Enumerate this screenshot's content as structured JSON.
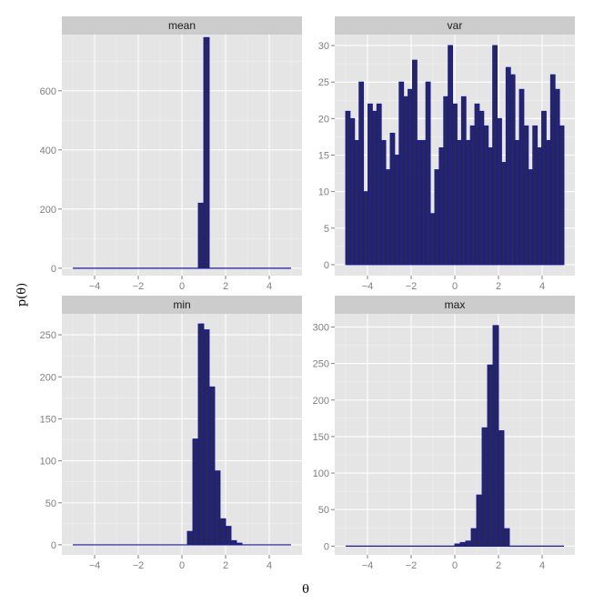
{
  "chart_data": {
    "type": "bar",
    "layout": "facet_wrap_2x2",
    "xlabel": "θ",
    "ylabel": "p(θ)",
    "grid": true,
    "legend": "none",
    "colors": {
      "bar_fill": "#262660",
      "bar_outline": "#1a1aa0",
      "panel_bg": "#e5e5e5",
      "strip_bg": "#cccccc",
      "grid": "#ffffff"
    },
    "bin_width": 0.25,
    "x_range": [
      -5,
      5
    ],
    "xlim": [
      -5.5,
      5.5
    ],
    "x_ticks": [
      -4,
      -2,
      0,
      2,
      4
    ],
    "panels": [
      {
        "title": "mean",
        "ylim": [
          -25,
          790
        ],
        "y_ticks": [
          0,
          200,
          400,
          600
        ],
        "bins": [
          {
            "x": 0.875,
            "y": 220
          },
          {
            "x": 1.125,
            "y": 780
          }
        ]
      },
      {
        "title": "var",
        "ylim": [
          -1.5,
          31.5
        ],
        "y_ticks": [
          0,
          5,
          10,
          15,
          20,
          25,
          30
        ],
        "values": [
          21,
          20,
          17,
          25,
          10,
          22,
          21,
          22,
          17,
          13,
          18,
          15,
          25,
          23,
          24,
          28,
          17,
          17,
          25,
          7,
          13,
          16,
          23,
          30,
          22,
          17,
          23,
          17,
          19,
          22,
          21,
          19,
          16,
          30,
          20,
          14,
          27,
          26,
          17,
          24,
          19,
          13,
          19,
          16,
          21,
          17,
          26,
          24,
          19
        ]
      },
      {
        "title": "min",
        "ylim": [
          -12,
          275
        ],
        "y_ticks": [
          0,
          50,
          100,
          150,
          200,
          250
        ],
        "bins": [
          {
            "x": 0.375,
            "y": 16
          },
          {
            "x": 0.625,
            "y": 126
          },
          {
            "x": 0.875,
            "y": 263
          },
          {
            "x": 1.125,
            "y": 256
          },
          {
            "x": 1.375,
            "y": 188
          },
          {
            "x": 1.625,
            "y": 88
          },
          {
            "x": 1.875,
            "y": 31
          },
          {
            "x": 2.125,
            "y": 22
          },
          {
            "x": 2.375,
            "y": 5
          },
          {
            "x": 2.625,
            "y": 2
          }
        ]
      },
      {
        "title": "max",
        "ylim": [
          -12,
          318
        ],
        "y_ticks": [
          0,
          50,
          100,
          150,
          200,
          250,
          300
        ],
        "bins": [
          {
            "x": 0.125,
            "y": 3
          },
          {
            "x": 0.375,
            "y": 5
          },
          {
            "x": 0.625,
            "y": 7
          },
          {
            "x": 0.875,
            "y": 24
          },
          {
            "x": 1.125,
            "y": 70
          },
          {
            "x": 1.375,
            "y": 162
          },
          {
            "x": 1.625,
            "y": 248
          },
          {
            "x": 1.875,
            "y": 302
          },
          {
            "x": 2.125,
            "y": 158
          },
          {
            "x": 2.375,
            "y": 24
          }
        ]
      }
    ]
  }
}
